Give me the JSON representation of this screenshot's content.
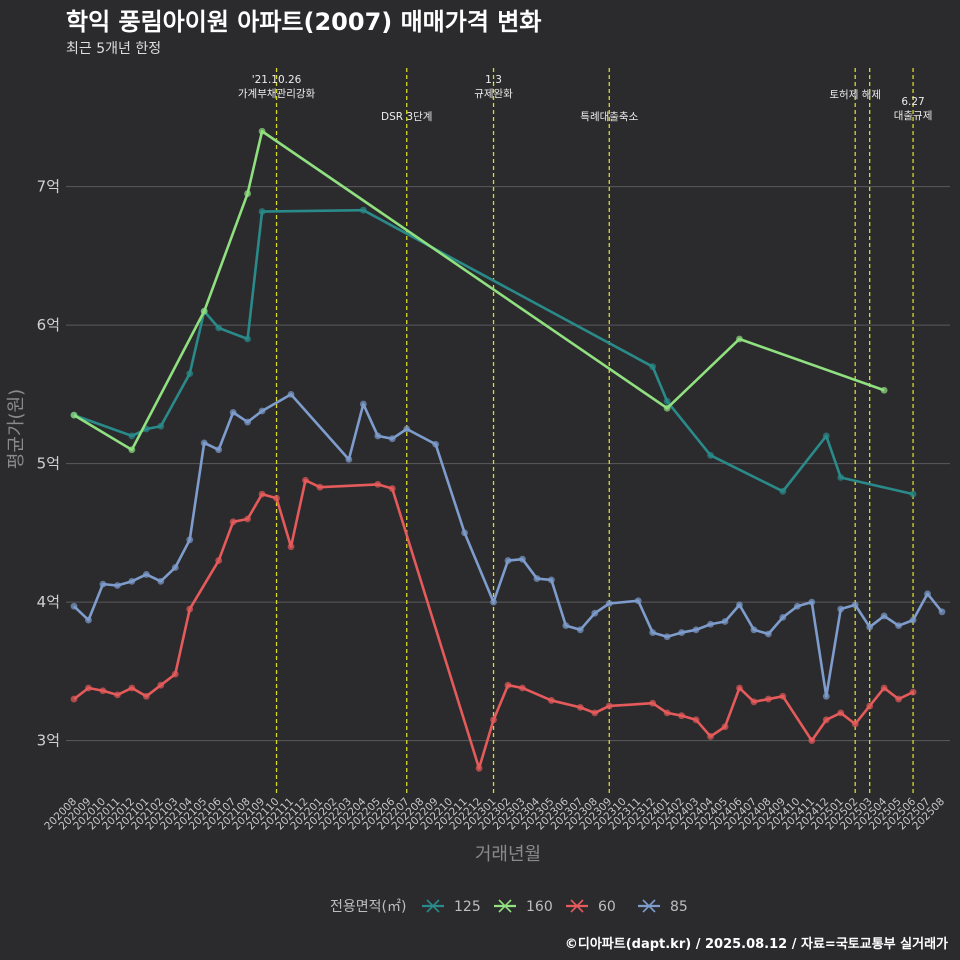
{
  "title": "학익 풍림아이원 아파트(2007) 매매가격 변화",
  "subtitle": "최근 5개년 한정",
  "caption": "©디아파트(dapt.kr) / 2025.08.12 / 자료=국토교통부 실거래가",
  "colors": {
    "background": "#2b2b2d",
    "grid": "#5a5a5c",
    "event_line": "#d8d82a",
    "s125": "#2a8a8a",
    "s160": "#90e080",
    "s60": "#e55a5a",
    "s85": "#7e9ccc"
  },
  "chart_data": {
    "type": "line",
    "title": "학익 풍림아이원 아파트(2007) 매매가격 변화",
    "subtitle": "최근 5개년 한정",
    "xlabel": "거래년월",
    "ylabel": "평균가(원)",
    "categories": [
      "202008",
      "202009",
      "202010",
      "202011",
      "202012",
      "202101",
      "202102",
      "202103",
      "202104",
      "202105",
      "202106",
      "202107",
      "202108",
      "202109",
      "202110",
      "202111",
      "202112",
      "202201",
      "202202",
      "202203",
      "202204",
      "202205",
      "202206",
      "202207",
      "202208",
      "202209",
      "202210",
      "202211",
      "202212",
      "202301",
      "202302",
      "202303",
      "202304",
      "202305",
      "202306",
      "202307",
      "202308",
      "202309",
      "202310",
      "202311",
      "202312",
      "202401",
      "202402",
      "202403",
      "202404",
      "202405",
      "202406",
      "202407",
      "202408",
      "202409",
      "202410",
      "202411",
      "202412",
      "202501",
      "202502",
      "202503",
      "202504",
      "202505",
      "202506",
      "202507",
      "202508"
    ],
    "y_ticks": [
      {
        "value": 3,
        "label": "3억"
      },
      {
        "value": 4,
        "label": "4억"
      },
      {
        "value": 5,
        "label": "5억"
      },
      {
        "value": 6,
        "label": "6억"
      },
      {
        "value": 7,
        "label": "7억"
      }
    ],
    "ylim": [
      2.6,
      7.9
    ],
    "y_unit": "억",
    "grid": true,
    "legend": {
      "title": "전용면적(㎡)",
      "position": "bottom"
    },
    "series": [
      {
        "name": "125",
        "color": "#2a8a8a",
        "x": [
          "202008",
          "202012",
          "202101",
          "202102",
          "202104",
          "202105",
          "202106",
          "202108",
          "202109",
          "202204",
          "202312",
          "202401",
          "202404",
          "202409",
          "202412",
          "202501",
          "202506"
        ],
        "values": [
          5.35,
          5.2,
          5.25,
          5.27,
          5.65,
          6.1,
          5.98,
          5.9,
          6.82,
          6.83,
          5.7,
          5.45,
          5.06,
          4.8,
          5.2,
          4.9,
          4.78
        ]
      },
      {
        "name": "160",
        "color": "#90e080",
        "x": [
          "202008",
          "202012",
          "202105",
          "202108",
          "202109",
          "202401",
          "202406",
          "202504"
        ],
        "values": [
          5.35,
          5.1,
          6.1,
          6.95,
          7.4,
          5.4,
          5.9,
          5.53
        ]
      },
      {
        "name": "60",
        "color": "#e55a5a",
        "x": [
          "202008",
          "202009",
          "202010",
          "202011",
          "202012",
          "202101",
          "202102",
          "202103",
          "202104",
          "202106",
          "202107",
          "202108",
          "202109",
          "202110",
          "202111",
          "202112",
          "202201",
          "202205",
          "202206",
          "202212",
          "202301",
          "202302",
          "202303",
          "202305",
          "202307",
          "202308",
          "202309",
          "202312",
          "202401",
          "202402",
          "202403",
          "202404",
          "202405",
          "202406",
          "202407",
          "202408",
          "202409",
          "202411",
          "202412",
          "202501",
          "202502",
          "202503",
          "202504",
          "202505",
          "202506"
        ],
        "values": [
          3.3,
          3.38,
          3.36,
          3.33,
          3.38,
          3.32,
          3.4,
          3.48,
          3.95,
          4.3,
          4.58,
          4.6,
          4.78,
          4.75,
          4.4,
          4.88,
          4.83,
          4.85,
          4.82,
          2.8,
          3.15,
          3.4,
          3.38,
          3.29,
          3.24,
          3.2,
          3.25,
          3.27,
          3.2,
          3.18,
          3.15,
          3.03,
          3.1,
          3.38,
          3.28,
          3.3,
          3.32,
          3.0,
          3.15,
          3.2,
          3.12,
          3.25,
          3.38,
          3.3,
          3.35
        ]
      },
      {
        "name": "85",
        "color": "#7e9ccc",
        "x": [
          "202008",
          "202009",
          "202010",
          "202011",
          "202012",
          "202101",
          "202102",
          "202103",
          "202104",
          "202105",
          "202106",
          "202107",
          "202108",
          "202109",
          "202111",
          "202203",
          "202204",
          "202205",
          "202206",
          "202207",
          "202209",
          "202211",
          "202301",
          "202302",
          "202303",
          "202304",
          "202305",
          "202306",
          "202307",
          "202308",
          "202309",
          "202311",
          "202312",
          "202401",
          "202402",
          "202403",
          "202404",
          "202405",
          "202406",
          "202407",
          "202408",
          "202409",
          "202410",
          "202411",
          "202412",
          "202501",
          "202502",
          "202503",
          "202504",
          "202505",
          "202506",
          "202507",
          "202508"
        ],
        "values": [
          3.97,
          3.87,
          4.13,
          4.12,
          4.15,
          4.2,
          4.15,
          4.25,
          4.45,
          5.15,
          5.1,
          5.37,
          5.3,
          5.38,
          5.5,
          5.03,
          5.43,
          5.2,
          5.18,
          5.25,
          5.14,
          4.5,
          4.0,
          4.3,
          4.31,
          4.17,
          4.16,
          3.83,
          3.8,
          3.92,
          3.99,
          4.01,
          3.78,
          3.75,
          3.78,
          3.8,
          3.84,
          3.86,
          3.98,
          3.8,
          3.77,
          3.89,
          3.97,
          4.0,
          3.32,
          3.95,
          3.98,
          3.82,
          3.9,
          3.83,
          3.87,
          4.06,
          3.93
        ]
      }
    ],
    "events": [
      {
        "x": "202110",
        "label": "'21.10.26\n가계부채관리강화"
      },
      {
        "x": "202207",
        "label": "DSR 3단계"
      },
      {
        "x": "202301",
        "label": "1.3\n규제완화"
      },
      {
        "x": "202309",
        "label": "특례대출축소"
      },
      {
        "x": "202502",
        "label": "토허제 해제"
      },
      {
        "x": "202503",
        "label": ""
      },
      {
        "x": "202506",
        "label": "6.27\n대출규제"
      }
    ]
  }
}
